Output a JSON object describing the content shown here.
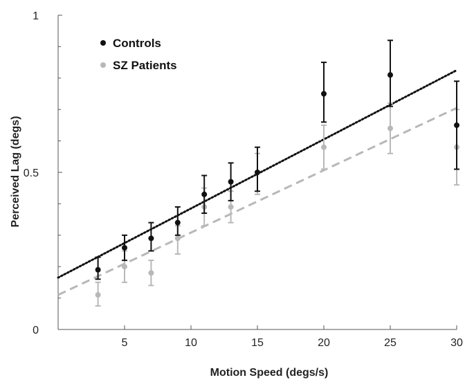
{
  "chart_data": {
    "type": "scatter",
    "xlabel": "Motion Speed (degs/s)",
    "ylabel": "Perceived Lag (degs)",
    "xlim": [
      0,
      30
    ],
    "ylim": [
      0,
      1
    ],
    "xticks": [
      5,
      10,
      15,
      20,
      25,
      30
    ],
    "xtick_labels": [
      "5",
      "10",
      "15",
      "20",
      "25",
      "30"
    ],
    "yticks": [
      0,
      0.5,
      1
    ],
    "ytick_labels": [
      "0",
      "0.5",
      "1"
    ],
    "y_minor_ticks": [
      0.1,
      0.2,
      0.3,
      0.4,
      0.6,
      0.7,
      0.8,
      0.9
    ],
    "grid": false,
    "legend_position": "top-left",
    "x": [
      3,
      5,
      7,
      9,
      11,
      13,
      15,
      20,
      25,
      30
    ],
    "series": [
      {
        "name": "Controls",
        "color": "#111111",
        "values": [
          0.19,
          0.26,
          0.29,
          0.34,
          0.43,
          0.47,
          0.5,
          0.75,
          0.81,
          0.65
        ],
        "err_low": [
          0.16,
          0.22,
          0.25,
          0.3,
          0.37,
          0.41,
          0.44,
          0.66,
          0.71,
          0.51
        ],
        "err_high": [
          0.23,
          0.3,
          0.34,
          0.39,
          0.49,
          0.53,
          0.58,
          0.85,
          0.92,
          0.79
        ],
        "fit": {
          "style": "dotted",
          "x": [
            0,
            30
          ],
          "y": [
            0.165,
            0.825
          ]
        }
      },
      {
        "name": "SZ Patients",
        "color": "#b8b8b8",
        "values": [
          0.11,
          0.2,
          0.18,
          0.29,
          0.39,
          0.39,
          0.5,
          0.58,
          0.64,
          0.58
        ],
        "err_low": [
          0.075,
          0.15,
          0.14,
          0.24,
          0.33,
          0.34,
          0.43,
          0.51,
          0.56,
          0.46
        ],
        "err_high": [
          0.15,
          0.25,
          0.22,
          0.33,
          0.45,
          0.44,
          0.56,
          0.65,
          0.72,
          0.7
        ],
        "fit": {
          "style": "dashed",
          "x": [
            0,
            30
          ],
          "y": [
            0.11,
            0.705
          ]
        }
      }
    ]
  }
}
